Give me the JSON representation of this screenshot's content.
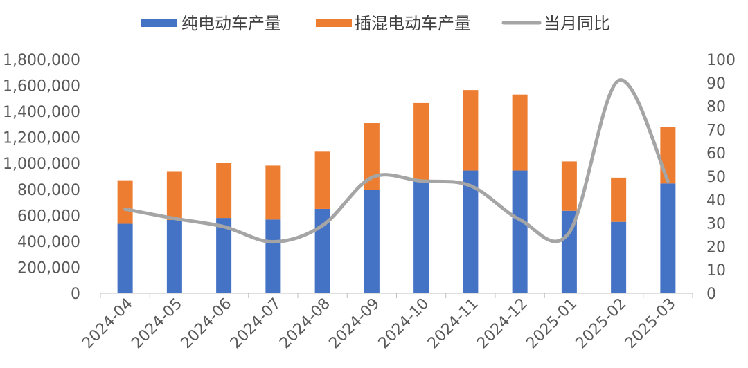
{
  "chart_data": {
    "type": "bar",
    "stacked": true,
    "categories": [
      "2024-04",
      "2024-05",
      "2024-06",
      "2024-07",
      "2024-08",
      "2024-09",
      "2024-10",
      "2024-11",
      "2024-12",
      "2025-01",
      "2025-02",
      "2025-03"
    ],
    "series": [
      {
        "name": "纯电动车产量",
        "axis": "left",
        "color": "#4472C4",
        "values": [
          535000,
          565000,
          580000,
          568000,
          650000,
          795000,
          860000,
          945000,
          945000,
          635000,
          550000,
          845000
        ]
      },
      {
        "name": "插混电动车产量",
        "axis": "left",
        "color": "#ED7D31",
        "values": [
          335000,
          375000,
          425000,
          415000,
          440000,
          515000,
          605000,
          620000,
          585000,
          380000,
          340000,
          435000
        ]
      },
      {
        "name": "当月同比",
        "axis": "right",
        "type": "line",
        "color": "#A5A5A5",
        "values": [
          36,
          32,
          28.5,
          22,
          29,
          49.5,
          48,
          46,
          31.5,
          26,
          91,
          48
        ]
      }
    ],
    "ylim_left": [
      0,
      1800000
    ],
    "ylim_right": [
      0,
      100
    ],
    "yticks_left": [
      "0",
      "200,000",
      "400,000",
      "600,000",
      "800,000",
      "1,000,000",
      "1,200,000",
      "1,400,000",
      "1,600,000",
      "1,800,000"
    ],
    "yticks_right": [
      "0",
      "10",
      "20",
      "30",
      "40",
      "50",
      "60",
      "70",
      "80",
      "90",
      "100"
    ],
    "legend_position": "top-center",
    "grid": false
  }
}
